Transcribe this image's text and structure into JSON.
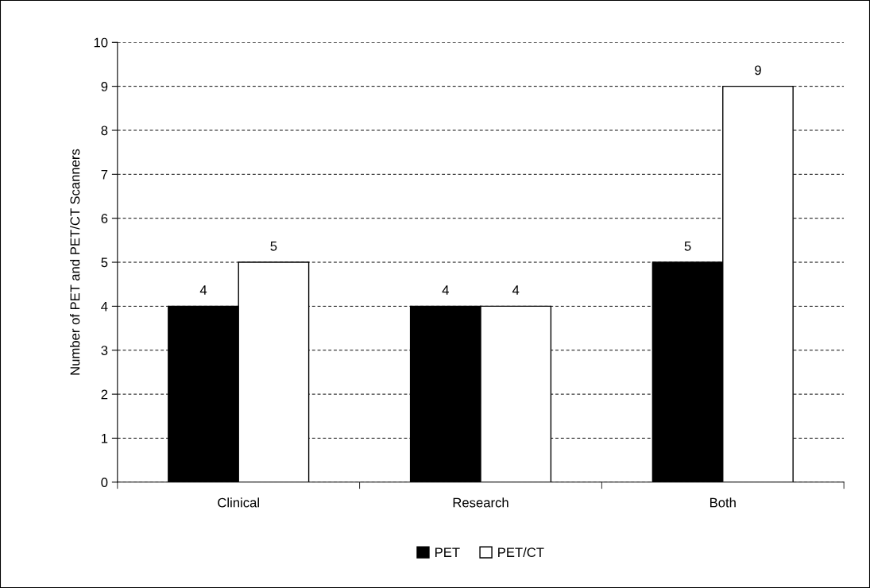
{
  "chart_data": {
    "type": "bar",
    "ylabel": "Number of PET and PET/CT Scanners",
    "categories": [
      "Clinical",
      "Research",
      "Both"
    ],
    "series": [
      {
        "name": "PET",
        "color": "#000000",
        "values": [
          4,
          4,
          5
        ]
      },
      {
        "name": "PET/CT",
        "color": "#ffffff",
        "values": [
          5,
          4,
          9
        ]
      }
    ],
    "ylim": [
      0,
      10
    ],
    "yticks": [
      0,
      1,
      2,
      3,
      4,
      5,
      6,
      7,
      8,
      9,
      10
    ],
    "grid": "y",
    "legend": "bottom",
    "data_labels": true
  }
}
